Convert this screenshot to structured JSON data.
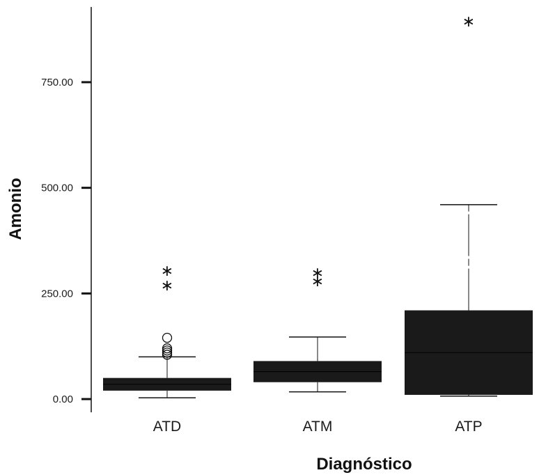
{
  "chart_data": {
    "type": "boxplot",
    "title": "",
    "xlabel": "Diagnóstico",
    "ylabel": "Amonio",
    "ylim": [
      -35,
      935
    ],
    "yticks": [
      0,
      250,
      500,
      750
    ],
    "ytick_labels": [
      "0.00",
      "250.00",
      "500.00",
      "750.00"
    ],
    "grid": false,
    "categories": [
      "ATD",
      "ATM",
      "ATP"
    ],
    "boxes": [
      {
        "category": "ATD",
        "min": 3,
        "q1": 20,
        "median": 35,
        "q3": 50,
        "max": 100,
        "outliers_circle": [
          105,
          110,
          115,
          120,
          145
        ],
        "outliers_extreme": [
          270,
          305
        ]
      },
      {
        "category": "ATM",
        "min": 17,
        "q1": 40,
        "median": 65,
        "q3": 90,
        "max": 147,
        "outliers_circle": [],
        "outliers_extreme": [
          280,
          300
        ]
      },
      {
        "category": "ATP",
        "min": 7,
        "q1": 10,
        "median": 110,
        "q3": 210,
        "max": 460,
        "outliers_circle": [],
        "outliers_extreme": [
          895
        ]
      }
    ],
    "colors": {
      "box": "#1a1a1a",
      "line": "#111111",
      "background": "#ffffff"
    }
  }
}
